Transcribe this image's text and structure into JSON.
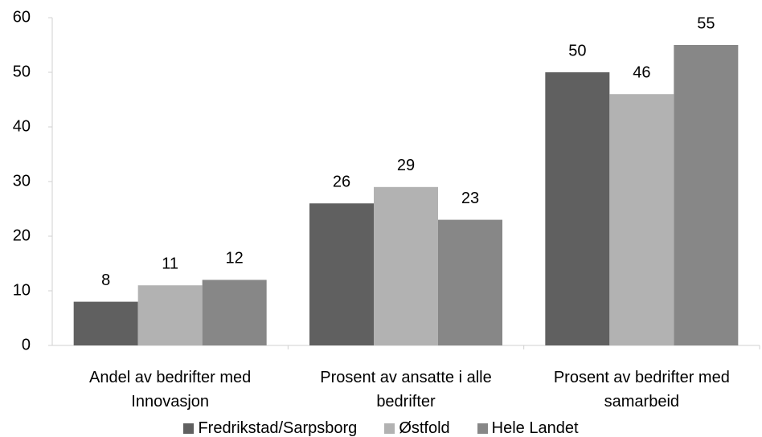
{
  "chart_data": {
    "type": "bar",
    "categories": [
      "Andel av bedrifter med Innovasjon",
      "Prosent av ansatte i alle bedrifter",
      "Prosent av bedrifter med samarbeid"
    ],
    "series": [
      {
        "name": "Fredrikstad/Sarpsborg",
        "color": "#606060",
        "values": [
          8,
          26,
          50
        ]
      },
      {
        "name": "Østfold",
        "color": "#b2b2b2",
        "values": [
          11,
          29,
          46
        ]
      },
      {
        "name": "Hele Landet",
        "color": "#878787",
        "values": [
          12,
          23,
          55
        ]
      }
    ],
    "ylim": [
      0,
      60
    ],
    "yticks": [
      0,
      10,
      20,
      30,
      40,
      50,
      60
    ],
    "grid": false,
    "legend": "bottom"
  }
}
